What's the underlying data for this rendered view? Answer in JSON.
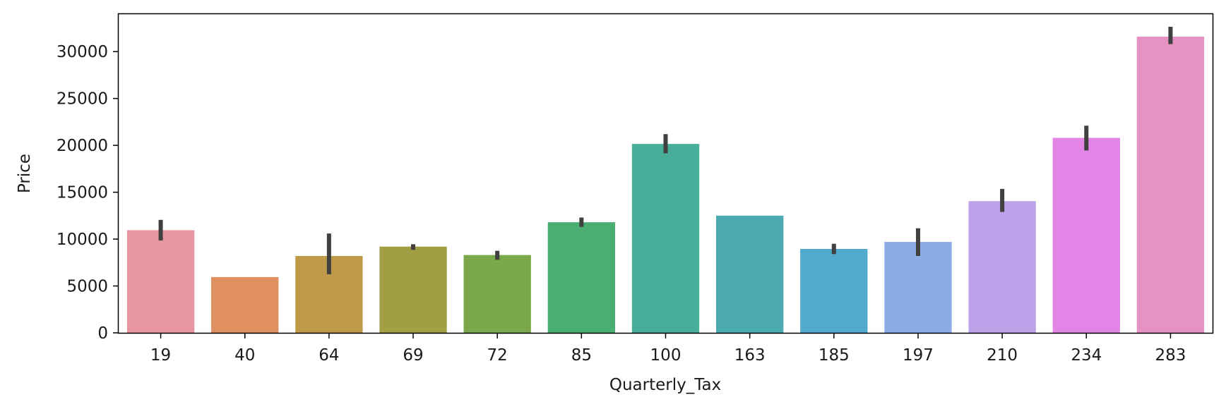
{
  "chart_data": {
    "type": "bar",
    "xlabel": "Quarterly_Tax",
    "ylabel": "Price",
    "ylim": [
      0,
      34000
    ],
    "yticks": [
      0,
      5000,
      10000,
      15000,
      20000,
      25000,
      30000
    ],
    "categories": [
      "19",
      "40",
      "64",
      "69",
      "72",
      "85",
      "100",
      "163",
      "185",
      "197",
      "210",
      "234",
      "283"
    ],
    "values": [
      10950,
      5950,
      8200,
      9200,
      8300,
      11800,
      20150,
      12500,
      8950,
      9700,
      14050,
      20800,
      31600
    ],
    "error_low": [
      9850,
      5950,
      6250,
      8850,
      7800,
      11300,
      19150,
      12500,
      8400,
      8200,
      12900,
      19450,
      30800
    ],
    "error_high": [
      12050,
      5950,
      10600,
      9450,
      8750,
      12300,
      21200,
      12500,
      9500,
      11150,
      15350,
      22100,
      32650
    ],
    "colors": [
      "#e8969f",
      "#e09060",
      "#be9a48",
      "#a19e44",
      "#7ba84a",
      "#4aae72",
      "#47ae9a",
      "#4aaab0",
      "#52aacc",
      "#8cacE6",
      "#bca2e8",
      "#e385e6",
      "#e692c2"
    ],
    "error_color": "#404040",
    "grid": false,
    "legend": "none"
  }
}
